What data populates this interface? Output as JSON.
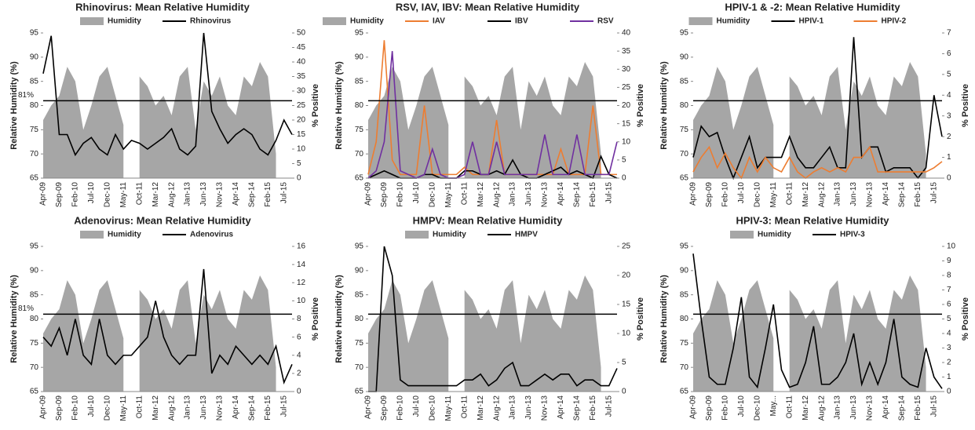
{
  "chart_data": [
    {
      "type": "area-line",
      "title": "Rhinovirus: Mean Relative Humidity",
      "y_label": "Relative Humidity (%)",
      "y2_label": "% Positive",
      "annotation": "81%",
      "ref_line": 81,
      "categories": [
        "Apr-09",
        null,
        "Sep-09",
        null,
        "Feb-10",
        null,
        "Jul-10",
        null,
        "Dec-10",
        null,
        "May-11",
        null,
        "Oct-11",
        null,
        "Mar-12",
        null,
        "Aug-12",
        null,
        "Jan-13",
        null,
        "Jun-13",
        null,
        "Nov-13",
        null,
        "Apr-14",
        null,
        "Sep-14",
        null,
        "Feb-15",
        null,
        "Jul-15",
        null
      ],
      "ylim": [
        65,
        95
      ],
      "yticks": [
        65,
        70,
        75,
        80,
        85,
        90,
        95
      ],
      "y2lim": [
        0,
        50
      ],
      "y2ticks": [
        0,
        5,
        10,
        15,
        20,
        25,
        30,
        35,
        40,
        45,
        50
      ],
      "series": [
        {
          "name": "Humidity",
          "color": "#a6a6a6",
          "values": [
            77,
            80,
            82,
            88,
            85,
            75,
            80,
            86,
            88,
            82,
            76,
            null,
            86,
            84,
            80,
            82,
            78,
            86,
            88,
            75,
            85,
            82,
            86,
            80,
            78,
            86,
            84,
            89,
            86,
            70,
            null,
            86
          ]
        },
        {
          "name": "Rhinovirus",
          "color": "#000000",
          "axis": "y2",
          "values": [
            36,
            49,
            15,
            15,
            8,
            12,
            14,
            10,
            8,
            15,
            10,
            13,
            12,
            10,
            12,
            14,
            17,
            10,
            8,
            11,
            50,
            23,
            17,
            12,
            15,
            17,
            15,
            10,
            8,
            13,
            20,
            15
          ]
        }
      ]
    },
    {
      "type": "area-line",
      "title": "RSV, IAV, IBV: Mean Relative Humidity",
      "y_label": "Relative Humidity (%)",
      "y2_label": "% Positive",
      "ref_line": 81,
      "categories": [
        "Apr-09",
        null,
        "Sep-09",
        null,
        "Feb-10",
        null,
        "Jul-10",
        null,
        "Dec-10",
        null,
        "May-11",
        null,
        "Oct-11",
        null,
        "Mar-12",
        null,
        "Aug-12",
        null,
        "Jan-13",
        null,
        "Jun-13",
        null,
        "Nov-13",
        null,
        "Apr-14",
        null,
        "Sep-14",
        null,
        "Feb-15",
        null,
        "Jul-15",
        null
      ],
      "ylim": [
        65,
        95
      ],
      "yticks": [
        65,
        70,
        75,
        80,
        85,
        90,
        95
      ],
      "y2lim": [
        0,
        40
      ],
      "y2ticks": [
        0,
        5,
        10,
        15,
        20,
        25,
        30,
        35,
        40
      ],
      "series": [
        {
          "name": "Humidity",
          "color": "#a6a6a6",
          "values": [
            77,
            80,
            82,
            88,
            85,
            75,
            80,
            86,
            88,
            82,
            76,
            null,
            86,
            84,
            80,
            82,
            78,
            86,
            88,
            75,
            85,
            82,
            86,
            80,
            78,
            86,
            84,
            89,
            86,
            70,
            null,
            86
          ]
        },
        {
          "name": "IAV",
          "color": "#ed7d31",
          "axis": "y2",
          "values": [
            1,
            10,
            38,
            5,
            1,
            1,
            1,
            20,
            1,
            1,
            1,
            1,
            3,
            1,
            1,
            1,
            16,
            1,
            1,
            1,
            1,
            1,
            1,
            1,
            8,
            1,
            1,
            1,
            20,
            1,
            1,
            1
          ]
        },
        {
          "name": "IBV",
          "color": "#000000",
          "axis": "y2",
          "values": [
            0,
            1,
            2,
            1,
            0,
            0,
            0,
            1,
            1,
            0,
            0,
            0,
            2,
            2,
            1,
            1,
            2,
            1,
            5,
            1,
            0,
            0,
            1,
            2,
            3,
            1,
            2,
            1,
            0,
            6,
            1,
            0
          ]
        },
        {
          "name": "RSV",
          "color": "#7030a0",
          "axis": "y2",
          "values": [
            0,
            2,
            10,
            35,
            2,
            1,
            0,
            1,
            8,
            1,
            0,
            0,
            1,
            10,
            1,
            1,
            10,
            1,
            1,
            1,
            1,
            1,
            12,
            1,
            1,
            1,
            12,
            1,
            1,
            1,
            1,
            10
          ]
        }
      ]
    },
    {
      "type": "area-line",
      "title": "HPIV-1 & -2: Mean Relative Humidity",
      "y_label": "Relative Humidity (%)",
      "y2_label": "% Positive",
      "ref_line": 81,
      "categories": [
        "Apr-09",
        null,
        "Sep-09",
        null,
        "Feb-10",
        null,
        "Jul-10",
        null,
        "Dec-10",
        null,
        "May-11",
        null,
        "Oct-11",
        null,
        "Mar-12",
        null,
        "Aug-12",
        null,
        "Jan-13",
        null,
        "Jun-13",
        null,
        "Nov-13",
        null,
        "Apr-14",
        null,
        "Sep-14",
        null,
        "Feb-15",
        null,
        "Jul-15",
        null
      ],
      "ylim": [
        65,
        95
      ],
      "yticks": [
        65,
        70,
        75,
        80,
        85,
        90,
        95
      ],
      "y2lim": [
        0,
        7
      ],
      "y2ticks": [
        0,
        1,
        2,
        3,
        4,
        5,
        6,
        7
      ],
      "series": [
        {
          "name": "Humidity",
          "color": "#a6a6a6",
          "values": [
            77,
            80,
            82,
            88,
            85,
            75,
            80,
            86,
            88,
            82,
            76,
            null,
            86,
            84,
            80,
            82,
            78,
            86,
            88,
            75,
            85,
            82,
            86,
            80,
            78,
            86,
            84,
            89,
            86,
            70,
            null,
            86
          ]
        },
        {
          "name": "HPIV-1",
          "color": "#000000",
          "axis": "y2",
          "values": [
            1,
            2.5,
            2,
            2.2,
            1,
            0,
            1,
            2,
            0.5,
            1,
            1,
            1,
            2,
            1,
            0.5,
            0.5,
            1,
            1.5,
            0.5,
            0.5,
            6.8,
            1,
            1.5,
            1.5,
            0.3,
            0.5,
            0.5,
            0.5,
            0,
            0.5,
            4,
            2
          ]
        },
        {
          "name": "HPIV-2",
          "color": "#ed7d31",
          "axis": "y2",
          "values": [
            0.3,
            1,
            1.5,
            0.5,
            1.2,
            0.5,
            0,
            1,
            0.3,
            1,
            0.5,
            0.3,
            1,
            0.3,
            0,
            0.3,
            0.5,
            0.3,
            0.5,
            0.3,
            1,
            1,
            1.5,
            0.3,
            0.3,
            0.3,
            0.3,
            0.3,
            0.3,
            0.3,
            0.5,
            0.8
          ]
        }
      ]
    },
    {
      "type": "area-line",
      "title": "Adenovirus: Mean Relative Humidity",
      "y_label": "Relative Humidity (%)",
      "y2_label": "% Positive",
      "annotation": "81%",
      "ref_line": 81,
      "categories": [
        "Apr-09",
        null,
        "Sep-09",
        null,
        "Feb-10",
        null,
        "Jul-10",
        null,
        "Dec-10",
        null,
        "May-11",
        null,
        "Oct-11",
        null,
        "Mar-12",
        null,
        "Aug-12",
        null,
        "Jan-13",
        null,
        "Jun-13",
        null,
        "Nov-13",
        null,
        "Apr-14",
        null,
        "Sep-14",
        null,
        "Feb-15",
        null,
        "Jul-15",
        null
      ],
      "ylim": [
        65,
        95
      ],
      "yticks": [
        65,
        70,
        75,
        80,
        85,
        90,
        95
      ],
      "y2lim": [
        0,
        16
      ],
      "y2ticks": [
        0,
        2,
        4,
        6,
        8,
        10,
        12,
        14,
        16
      ],
      "series": [
        {
          "name": "Humidity",
          "color": "#a6a6a6",
          "values": [
            77,
            80,
            82,
            88,
            85,
            75,
            80,
            86,
            88,
            82,
            76,
            null,
            86,
            84,
            80,
            82,
            78,
            86,
            88,
            75,
            85,
            82,
            86,
            80,
            78,
            86,
            84,
            89,
            86,
            70,
            null,
            86
          ]
        },
        {
          "name": "Adenovirus",
          "color": "#000000",
          "axis": "y2",
          "values": [
            6,
            5,
            7,
            4,
            8,
            4,
            3,
            8,
            4,
            3,
            4,
            4,
            5,
            6,
            10,
            6,
            4,
            3,
            4,
            4,
            13.5,
            2,
            4,
            3,
            5,
            4,
            3,
            4,
            3,
            5,
            1,
            3
          ]
        }
      ]
    },
    {
      "type": "area-line",
      "title": "HMPV: Mean Relative Humidity",
      "y_label": "Relative Humidity (%)",
      "y2_label": "% Positive",
      "ref_line": 81,
      "categories": [
        "Apr-09",
        null,
        "Sep-09",
        null,
        "Feb-10",
        null,
        "Jul-10",
        null,
        "Dec-10",
        null,
        "May-11",
        null,
        "Oct-11",
        null,
        "Mar-12",
        null,
        "Aug-12",
        null,
        "Jan-13",
        null,
        "Jun-13",
        null,
        "Nov-13",
        null,
        "Apr-14",
        null,
        "Sep-14",
        null,
        "Feb-15",
        null,
        "Jul-15",
        null
      ],
      "ylim": [
        65,
        95
      ],
      "yticks": [
        65,
        70,
        75,
        80,
        85,
        90,
        95
      ],
      "y2lim": [
        0,
        25
      ],
      "y2ticks": [
        0,
        5,
        10,
        15,
        20,
        25
      ],
      "series": [
        {
          "name": "Humidity",
          "color": "#a6a6a6",
          "values": [
            77,
            80,
            82,
            88,
            85,
            75,
            80,
            86,
            88,
            82,
            76,
            null,
            86,
            84,
            80,
            82,
            78,
            86,
            88,
            75,
            85,
            82,
            86,
            80,
            78,
            86,
            84,
            89,
            86,
            70,
            null,
            86
          ]
        },
        {
          "name": "HMPV",
          "color": "#000000",
          "axis": "y2",
          "values": [
            0,
            0,
            25,
            20,
            2,
            1,
            1,
            1,
            1,
            1,
            1,
            1,
            2,
            2,
            3,
            1,
            2,
            4,
            5,
            1,
            1,
            2,
            3,
            2,
            3,
            3,
            1,
            2,
            2,
            1,
            1,
            4
          ]
        }
      ]
    },
    {
      "type": "area-line",
      "title": "HPIV-3: Mean Relative Humidity",
      "y_label": "Relative Humidity (%)",
      "y2_label": "% Positive",
      "ref_line": 81,
      "categories": [
        "Apr-09",
        null,
        "Sep-09",
        null,
        "Feb-10",
        null,
        "Jul-10",
        null,
        "Dec-10",
        null,
        "May...",
        null,
        "Oct-11",
        null,
        "Mar-12",
        null,
        "Aug-12",
        null,
        "Jan-13",
        null,
        "Jun-13",
        null,
        "Nov-13",
        null,
        "Apr-14",
        null,
        "Sep-14",
        null,
        "Feb-15",
        null,
        "Jul-15",
        null
      ],
      "ylim": [
        65,
        95
      ],
      "yticks": [
        65,
        70,
        75,
        80,
        85,
        90,
        95
      ],
      "y2lim": [
        0,
        10
      ],
      "y2ticks": [
        0,
        1,
        2,
        3,
        4,
        5,
        6,
        7,
        8,
        9,
        10
      ],
      "series": [
        {
          "name": "Humidity",
          "color": "#a6a6a6",
          "values": [
            77,
            80,
            82,
            88,
            85,
            75,
            80,
            86,
            88,
            82,
            76,
            null,
            86,
            84,
            80,
            82,
            78,
            86,
            88,
            75,
            85,
            82,
            86,
            80,
            78,
            86,
            84,
            89,
            86,
            70,
            null,
            86
          ]
        },
        {
          "name": "HPIV-3",
          "color": "#000000",
          "axis": "y2",
          "values": [
            9.5,
            5,
            1,
            0.5,
            0.5,
            3,
            6.5,
            1,
            0.3,
            3,
            6,
            1.5,
            0.3,
            0.5,
            2,
            4.5,
            0.5,
            0.5,
            1,
            2,
            4,
            0.5,
            2,
            0.5,
            2,
            5,
            1,
            0.5,
            0.3,
            3,
            1,
            0.2
          ]
        }
      ]
    }
  ]
}
